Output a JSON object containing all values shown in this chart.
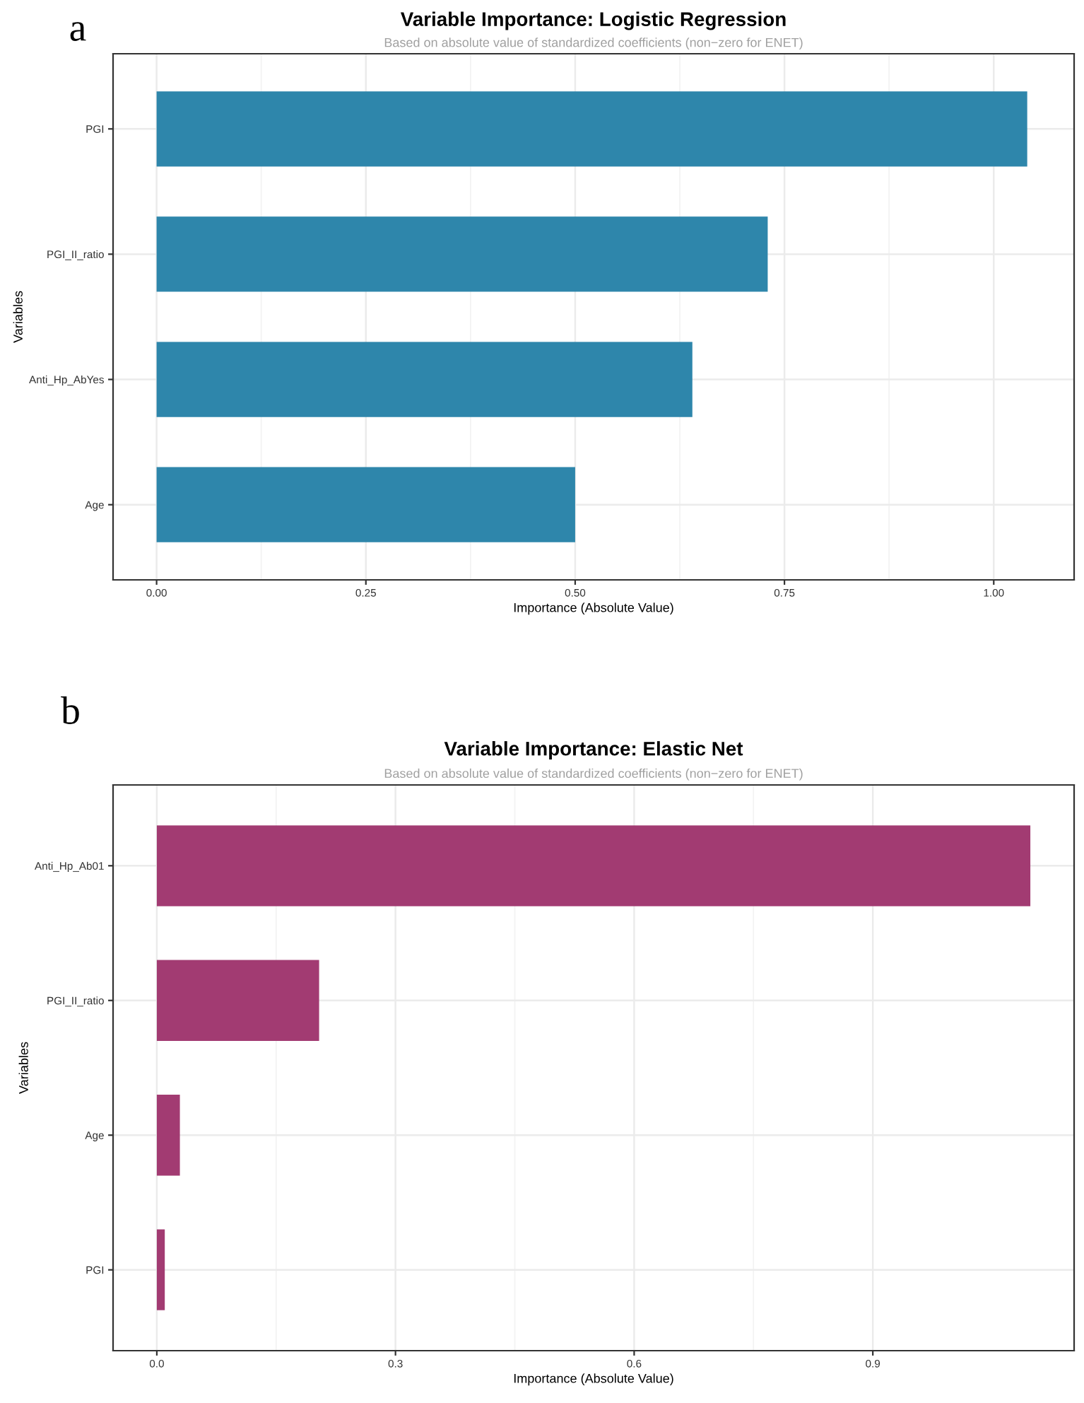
{
  "chart_data": [
    {
      "type": "bar",
      "orientation": "horizontal",
      "title": "Variable Importance: Logistic Regression",
      "subtitle": "Based on absolute value of standardized coefficients (non−zero for ENET)",
      "xlabel": "Importance (Absolute Value)",
      "ylabel": "Variables",
      "annotations": [
        "a"
      ],
      "categories": [
        "PGI",
        "PGI_II_ratio",
        "Anti_Hp_AbYes",
        "Age"
      ],
      "values": [
        1.04,
        0.73,
        0.64,
        0.5
      ],
      "color": "#2e86ab",
      "xlim": [
        -0.052,
        1.096
      ],
      "xticks": [
        {
          "value": 0,
          "label": "0.00"
        },
        {
          "value": 0.25,
          "label": "0.25"
        },
        {
          "value": 0.5,
          "label": "0.50"
        },
        {
          "value": 0.75,
          "label": "0.75"
        },
        {
          "value": 1,
          "label": "1.00"
        }
      ],
      "grid": true,
      "legend": false
    },
    {
      "type": "bar",
      "orientation": "horizontal",
      "title": "Variable Importance: Elastic Net",
      "subtitle": "Based on absolute value of standardized coefficients (non−zero for ENET)",
      "xlabel": "Importance (Absolute Value)",
      "ylabel": "Variables",
      "annotations": [
        "b"
      ],
      "categories": [
        "Anti_Hp_Ab01",
        "PGI_II_ratio",
        "Age",
        "PGI"
      ],
      "values": [
        1.098,
        0.204,
        0.029,
        0.01
      ],
      "color": "#a23b72",
      "xlim": [
        -0.055,
        1.153
      ],
      "xticks": [
        {
          "value": 0,
          "label": "0.0"
        },
        {
          "value": 0.3,
          "label": "0.3"
        },
        {
          "value": 0.6,
          "label": "0.6"
        },
        {
          "value": 0.9,
          "label": "0.9"
        }
      ],
      "grid": true,
      "legend": false
    }
  ]
}
